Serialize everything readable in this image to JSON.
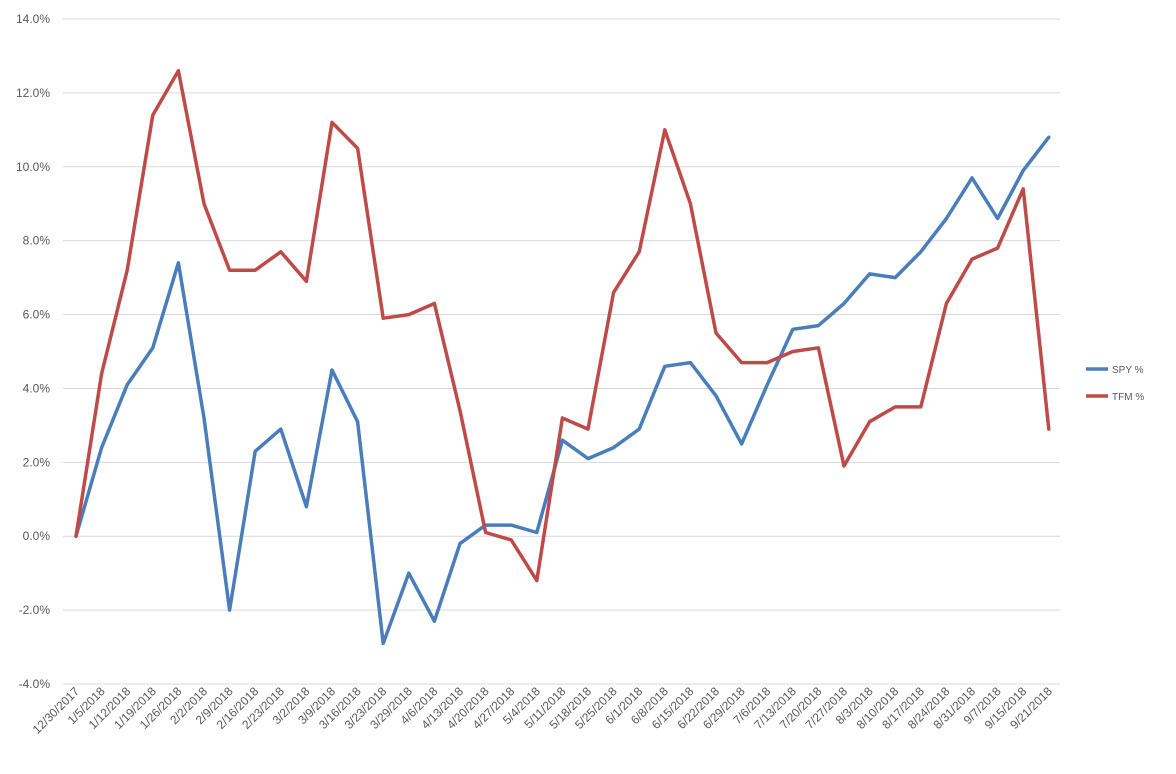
{
  "chart_data": {
    "type": "line",
    "title": "",
    "xlabel": "",
    "ylabel": "",
    "ylim": [
      -4.0,
      14.0
    ],
    "y_ticks": [
      "-4.0%",
      "-2.0%",
      "0.0%",
      "2.0%",
      "4.0%",
      "6.0%",
      "8.0%",
      "10.0%",
      "12.0%",
      "14.0%"
    ],
    "y_unit": "%",
    "grid": true,
    "legend_position": "right",
    "categories": [
      "12/30/2017",
      "1/5/2018",
      "1/12/2018",
      "1/19/2018",
      "1/26/2018",
      "2/2/2018",
      "2/9/2018",
      "2/16/2018",
      "2/23/2018",
      "3/2/2018",
      "3/9/2018",
      "3/16/2018",
      "3/23/2018",
      "3/29/2018",
      "4/6/2018",
      "4/13/2018",
      "4/20/2018",
      "4/27/2018",
      "5/4/2018",
      "5/11/2018",
      "5/18/2018",
      "5/25/2018",
      "6/1/2018",
      "6/8/2018",
      "6/15/2018",
      "6/22/2018",
      "6/29/2018",
      "7/6/2018",
      "7/13/2018",
      "7/20/2018",
      "7/27/2018",
      "8/3/2018",
      "8/10/2018",
      "8/17/2018",
      "8/24/2018",
      "8/31/2018",
      "9/7/2018",
      "9/15/2018",
      "9/21/2018"
    ],
    "series": [
      {
        "name": "SPY %",
        "color": "#4a7ebb",
        "values": [
          0.0,
          2.4,
          4.1,
          5.1,
          7.4,
          3.2,
          -2.0,
          2.3,
          2.9,
          0.8,
          4.5,
          3.1,
          -2.9,
          -1.0,
          -2.3,
          -0.2,
          0.3,
          0.3,
          0.1,
          2.6,
          2.1,
          2.4,
          2.9,
          4.6,
          4.7,
          3.8,
          2.5,
          4.1,
          5.6,
          5.7,
          6.3,
          7.1,
          7.0,
          7.7,
          8.6,
          9.7,
          8.6,
          9.9,
          10.8
        ]
      },
      {
        "name": "TFM %",
        "color": "#be4b48",
        "values": [
          0.0,
          4.4,
          7.2,
          11.4,
          12.6,
          9.0,
          7.2,
          7.2,
          7.7,
          6.9,
          11.2,
          10.5,
          5.9,
          6.0,
          6.3,
          3.4,
          0.1,
          -0.1,
          -1.2,
          3.2,
          2.9,
          6.6,
          7.7,
          11.0,
          9.0,
          5.5,
          4.7,
          4.7,
          5.0,
          5.1,
          1.9,
          3.1,
          3.5,
          3.5,
          6.3,
          7.5,
          7.8,
          9.4,
          2.9
        ]
      }
    ]
  }
}
